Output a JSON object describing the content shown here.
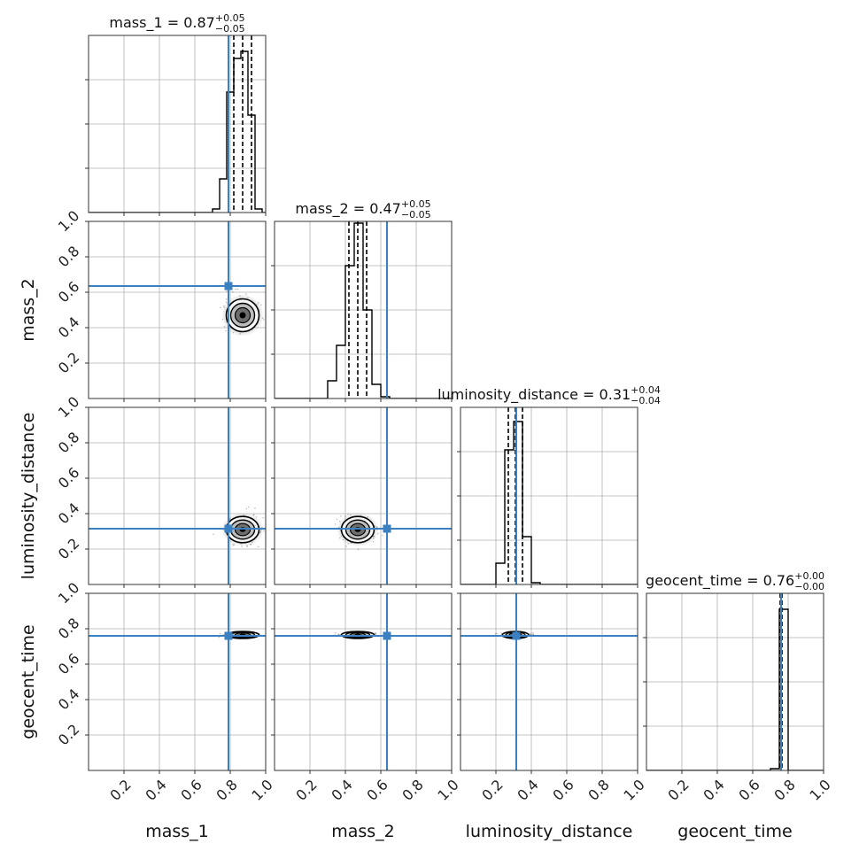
{
  "chart_data": {
    "type": "corner",
    "parameters": [
      "mass_1",
      "mass_2",
      "luminosity_distance",
      "geocent_time"
    ],
    "axis_range": [
      0,
      1
    ],
    "tick_values": [
      0.2,
      0.4,
      0.6,
      0.8,
      1.0
    ],
    "tick_labels": [
      "0.2",
      "0.4",
      "0.6",
      "0.8",
      "1.0"
    ],
    "grid": true,
    "colors": {
      "truth": "#3b80c0",
      "hist": "#000000",
      "grid": "#b0b0b0",
      "frame": "#333333"
    },
    "truths": {
      "mass_1": 0.79,
      "mass_2": 0.635,
      "luminosity_distance": 0.315,
      "geocent_time": 0.76
    },
    "titles": [
      {
        "param": "mass_1",
        "label": "mass_1",
        "value": "0.87",
        "plus": "+0.05",
        "minus": "−0.05"
      },
      {
        "param": "mass_2",
        "label": "mass_2",
        "value": "0.47",
        "plus": "+0.05",
        "minus": "−0.05"
      },
      {
        "param": "luminosity_distance",
        "label": "luminosity_distance",
        "value": "0.31",
        "plus": "+0.04",
        "minus": "−0.04"
      },
      {
        "param": "geocent_time",
        "label": "geocent_time",
        "value": "0.76",
        "plus": "+0.00",
        "minus": "−0.00"
      }
    ],
    "quantiles": {
      "mass_1": [
        0.82,
        0.87,
        0.92
      ],
      "mass_2": [
        0.42,
        0.47,
        0.52
      ],
      "luminosity_distance": [
        0.27,
        0.31,
        0.35
      ],
      "geocent_time": [
        0.755,
        0.76,
        0.765
      ]
    },
    "histograms": {
      "mass_1": {
        "edges": [
          0.7,
          0.74,
          0.78,
          0.82,
          0.86,
          0.9,
          0.94,
          0.98
        ],
        "counts": [
          0.02,
          0.19,
          0.68,
          0.87,
          0.91,
          0.55,
          0.02
        ]
      },
      "mass_2": {
        "edges": [
          0.3,
          0.35,
          0.4,
          0.45,
          0.5,
          0.55,
          0.6,
          0.65
        ],
        "counts": [
          0.1,
          0.3,
          0.75,
          0.99,
          0.5,
          0.08,
          0.01
        ]
      },
      "luminosity_distance": {
        "edges": [
          0.2,
          0.25,
          0.3,
          0.35,
          0.4,
          0.45
        ],
        "counts": [
          0.12,
          0.76,
          0.92,
          0.27,
          0.01
        ]
      },
      "geocent_time": {
        "edges": [
          0.7,
          0.75,
          0.8
        ],
        "counts": [
          0.01,
          0.91
        ]
      }
    },
    "contours_2d": [
      {
        "x": "mass_1",
        "y": "mass_2",
        "center": [
          0.87,
          0.47
        ],
        "sigma": [
          0.05,
          0.05
        ]
      },
      {
        "x": "mass_1",
        "y": "luminosity_distance",
        "center": [
          0.87,
          0.31
        ],
        "sigma": [
          0.05,
          0.04
        ]
      },
      {
        "x": "mass_2",
        "y": "luminosity_distance",
        "center": [
          0.47,
          0.31
        ],
        "sigma": [
          0.05,
          0.04
        ]
      },
      {
        "x": "mass_1",
        "y": "geocent_time",
        "center": [
          0.87,
          0.765
        ],
        "sigma": [
          0.05,
          0.006
        ]
      },
      {
        "x": "mass_2",
        "y": "geocent_time",
        "center": [
          0.47,
          0.765
        ],
        "sigma": [
          0.05,
          0.006
        ]
      },
      {
        "x": "luminosity_distance",
        "y": "geocent_time",
        "center": [
          0.31,
          0.765
        ],
        "sigma": [
          0.04,
          0.006
        ]
      }
    ]
  }
}
